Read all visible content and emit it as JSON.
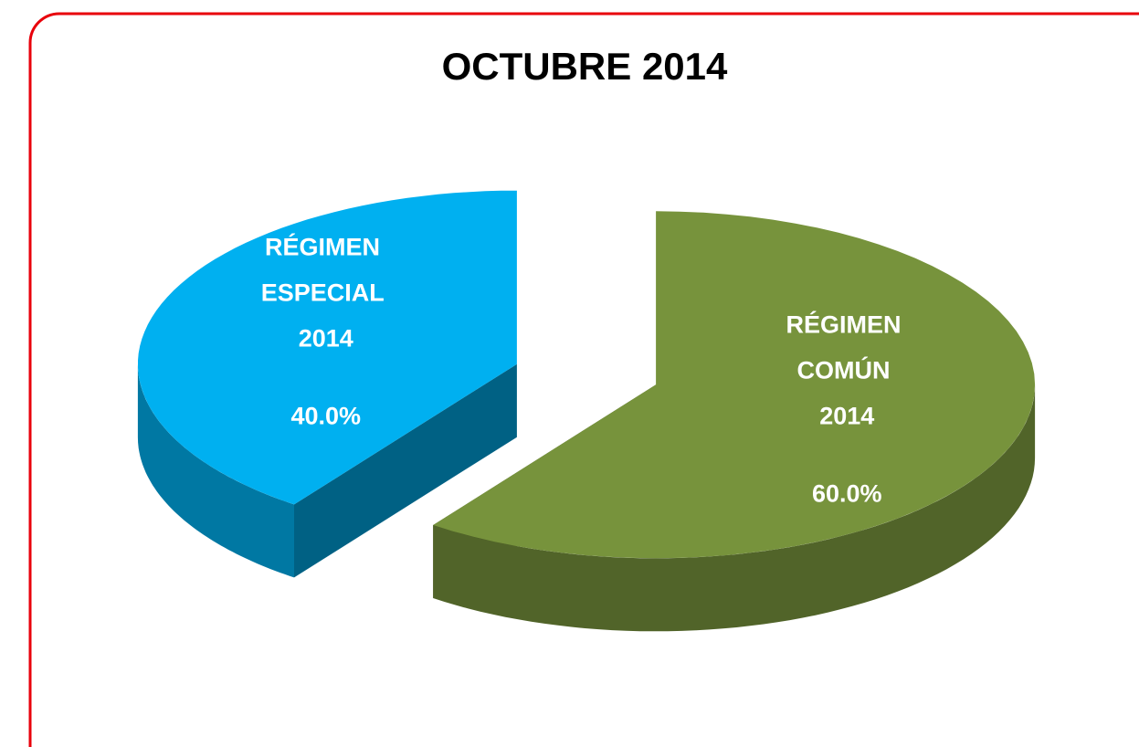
{
  "chart_data": {
    "type": "pie",
    "title": "OCTUBRE 2014",
    "categories": [
      "RÉGIMEN ESPECIAL 2014",
      "RÉGIMEN COMÚN 2014"
    ],
    "values": [
      40,
      60
    ],
    "value_labels": [
      "40.0%",
      "60.0%"
    ],
    "colors": [
      "#00b0f0",
      "#77933c"
    ]
  }
}
